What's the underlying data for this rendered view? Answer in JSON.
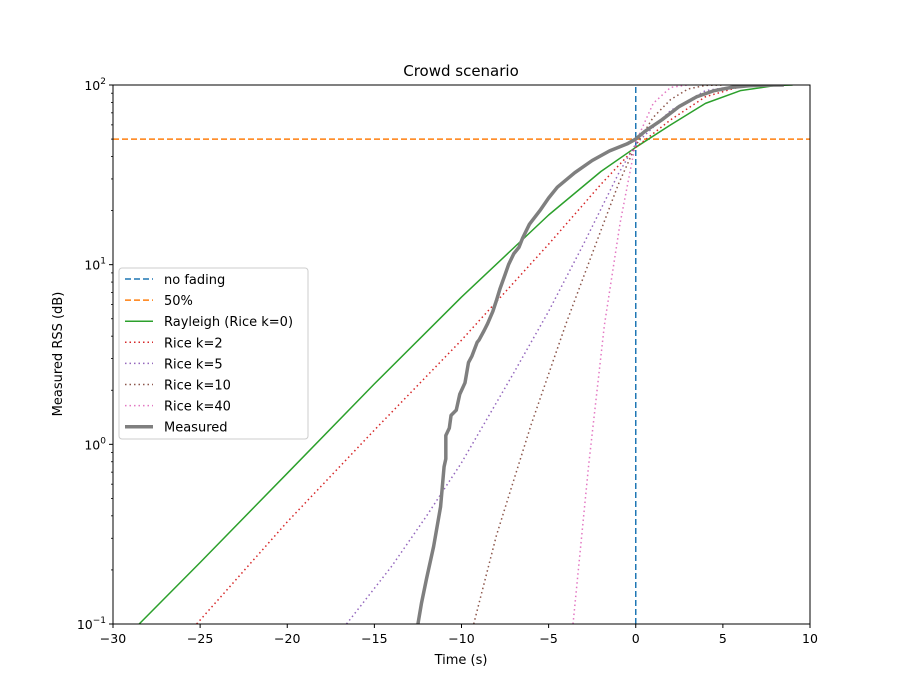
{
  "chart_data": {
    "type": "line",
    "title": "Crowd scenario",
    "xlabel": "Time (s)",
    "ylabel": "Measured RSS (dB)",
    "xlim": [
      -30,
      10
    ],
    "ylim": [
      0.1,
      100
    ],
    "yscale": "log",
    "grid": false,
    "legend_position": "center-left",
    "x_ticks": [
      -30,
      -25,
      -20,
      -15,
      -10,
      -5,
      0,
      5,
      10
    ],
    "x_tick_labels": [
      "−30",
      "−25",
      "−20",
      "−15",
      "−10",
      "−5",
      "0",
      "5",
      "10"
    ],
    "y_ticks": [
      {
        "value": 100,
        "base": "10",
        "exp": "2"
      },
      {
        "value": 10,
        "base": "10",
        "exp": "1"
      },
      {
        "value": 1,
        "base": "10",
        "exp": "0"
      },
      {
        "value": 0.1,
        "base": "10",
        "exp": "−1"
      }
    ],
    "series": [
      {
        "name": "no fading",
        "color": "#1f77b4",
        "dash": "dashed",
        "width": 1.5,
        "x": [
          0,
          0
        ],
        "y": [
          0.1,
          100
        ]
      },
      {
        "name": "50%",
        "color": "#ff7f0e",
        "dash": "dashed",
        "width": 1.5,
        "x": [
          -30,
          10
        ],
        "y": [
          50,
          50
        ]
      },
      {
        "name": "Rayleigh (Rice k=0)",
        "color": "#2ca02c",
        "dash": "solid",
        "width": 1.5,
        "x": [
          -28.5,
          -25,
          -20,
          -15,
          -10,
          -5,
          -2,
          0,
          2,
          4,
          6,
          8,
          9
        ],
        "y": [
          0.1,
          0.22,
          0.69,
          2.17,
          6.6,
          18.9,
          33,
          45,
          60,
          79,
          93,
          99.3,
          100
        ]
      },
      {
        "name": "Rice k=2",
        "color": "#d62728",
        "dash": "dotted",
        "width": 1.5,
        "x": [
          -25.2,
          -20,
          -15,
          -10,
          -5,
          -2,
          0,
          2,
          4,
          6,
          8
        ],
        "y": [
          0.1,
          0.37,
          1.2,
          3.8,
          13,
          28,
          45,
          64,
          86,
          98,
          100
        ]
      },
      {
        "name": "Rice k=5",
        "color": "#9467bd",
        "dash": "dotted",
        "width": 1.5,
        "x": [
          -16.6,
          -14,
          -12,
          -10,
          -7,
          -5,
          -3,
          -1,
          0,
          2,
          4,
          6,
          7
        ],
        "y": [
          0.1,
          0.21,
          0.4,
          0.79,
          2.5,
          5.5,
          13,
          32,
          47,
          72,
          93,
          99.5,
          100
        ]
      },
      {
        "name": "Rice k=10",
        "color": "#8c564b",
        "dash": "dotted",
        "width": 1.5,
        "x": [
          -9.3,
          -8,
          -6,
          -4,
          -2,
          -1,
          0,
          1,
          2,
          3,
          4,
          5
        ],
        "y": [
          0.1,
          0.31,
          1.29,
          4.7,
          15.5,
          28,
          46,
          66,
          83,
          95,
          99.5,
          100
        ]
      },
      {
        "name": "Rice k=40",
        "color": "#e377c2",
        "dash": "dotted",
        "width": 1.5,
        "x": [
          -3.6,
          -2.7,
          -1.8,
          -0.9,
          0,
          1,
          2,
          3
        ],
        "y": [
          0.1,
          0.77,
          4.6,
          17,
          48,
          79,
          97,
          100
        ]
      },
      {
        "name": "Measured",
        "color": "#7f7f7f",
        "dash": "solid",
        "width": 3.5,
        "x": [
          -12.5,
          -12.3,
          -12.0,
          -11.6,
          -11.2,
          -11.0,
          -10.9,
          -10.9,
          -10.7,
          -10.6,
          -10.3,
          -10.1,
          -9.8,
          -9.6,
          -9.4,
          -9.1,
          -9.0,
          -8.7,
          -8.5,
          -8.2,
          -8.0,
          -7.8,
          -7.5,
          -7.3,
          -7.0,
          -6.7,
          -6.5,
          -6.1,
          -5.5,
          -5.0,
          -4.5,
          -3.5,
          -2.5,
          -1.5,
          -0.5,
          0,
          0.5,
          1.5,
          2.5,
          3.5,
          4.5,
          5.5,
          6.5,
          7.5,
          8.5
        ],
        "y": [
          0.1,
          0.13,
          0.18,
          0.27,
          0.45,
          0.75,
          0.83,
          1.12,
          1.23,
          1.45,
          1.55,
          1.9,
          2.2,
          2.85,
          3.1,
          3.7,
          3.8,
          4.3,
          4.7,
          5.5,
          6.3,
          7.3,
          8.8,
          10,
          11.5,
          12.5,
          14,
          16.8,
          20,
          23.5,
          27,
          32.5,
          38,
          43,
          47,
          50,
          55,
          64,
          76,
          86,
          93,
          97,
          99,
          99.8,
          100
        ]
      }
    ]
  }
}
